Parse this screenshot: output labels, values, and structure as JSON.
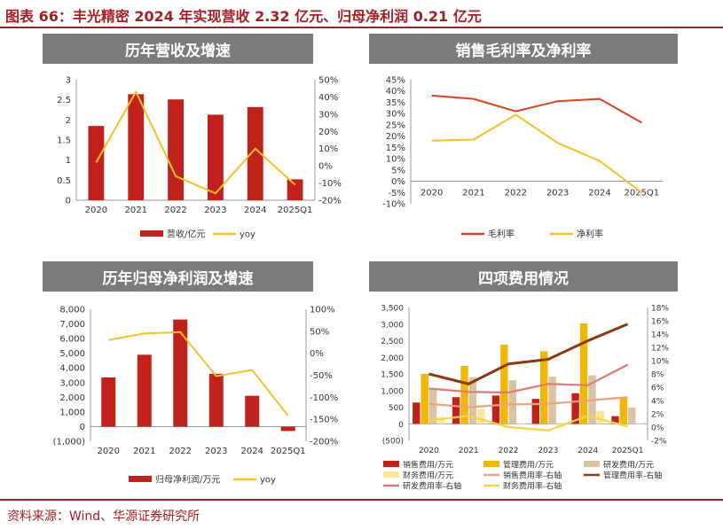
{
  "header": {
    "title": "图表 66：丰光精密 2024 年实现营收 2.32 亿元、归母净利润 0.21 亿元"
  },
  "footer": {
    "source": "资料来源：Wind、华源证券研究所"
  },
  "colors": {
    "accent": "#a31f24",
    "red_bar": "#c0211a",
    "yellow": "#f7c028",
    "orange_red": "#d9441c",
    "panel_head": "#7b7b7b"
  },
  "chart_data": [
    {
      "id": "revenue",
      "type": "bar",
      "title": "历年营收及增速",
      "categories": [
        "2020",
        "2021",
        "2022",
        "2023",
        "2024",
        "2025Q1"
      ],
      "series": [
        {
          "name": "营收/亿元",
          "type": "bar",
          "axis": "left",
          "color": "#c0211a",
          "values": [
            1.85,
            2.64,
            2.51,
            2.13,
            2.32,
            0.52
          ]
        },
        {
          "name": "yoy",
          "type": "line",
          "axis": "right",
          "color": "#f7c028",
          "values": [
            2,
            43,
            -6,
            -16,
            10,
            -11
          ]
        }
      ],
      "left_axis": {
        "ticks": [
          "0",
          "0.5",
          "1",
          "1.5",
          "2",
          "2.5",
          "3"
        ],
        "ylim": [
          0,
          3
        ]
      },
      "right_axis": {
        "ticks": [
          "-20%",
          "-10%",
          "0%",
          "10%",
          "20%",
          "30%",
          "40%",
          "50%"
        ],
        "ylim": [
          -20,
          50
        ]
      },
      "legend": "bottom"
    },
    {
      "id": "margin",
      "type": "line",
      "title": "销售毛利率及净利率",
      "categories": [
        "2020",
        "2021",
        "2022",
        "2023",
        "2024",
        "2025Q1"
      ],
      "series": [
        {
          "name": "毛利率",
          "type": "line",
          "axis": "left",
          "color": "#d9441c",
          "values": [
            38,
            36.5,
            31,
            35.5,
            36.5,
            26
          ]
        },
        {
          "name": "净利率",
          "type": "line",
          "axis": "left",
          "color": "#f7c028",
          "values": [
            18,
            18.5,
            29.5,
            17,
            9,
            -5
          ]
        }
      ],
      "left_axis": {
        "ticks": [
          "-10%",
          "-5%",
          "0%",
          "5%",
          "10%",
          "15%",
          "20%",
          "25%",
          "30%",
          "35%",
          "40%",
          "45%"
        ],
        "ylim": [
          -10,
          45
        ]
      },
      "legend": "bottom"
    },
    {
      "id": "netprofit",
      "type": "bar",
      "title": "历年归母净利润及增速",
      "categories": [
        "2020",
        "2021",
        "2022",
        "2023",
        "2024",
        "2025Q1"
      ],
      "series": [
        {
          "name": "归母净利润/万元",
          "type": "bar",
          "axis": "left",
          "color": "#c0211a",
          "values": [
            3350,
            4900,
            7300,
            3600,
            2100,
            -300
          ]
        },
        {
          "name": "yoy",
          "type": "line",
          "axis": "right",
          "color": "#f7c028",
          "values": [
            30,
            45,
            48,
            -52,
            -38,
            -142
          ]
        }
      ],
      "left_axis": {
        "ticks": [
          "(1,000)",
          "0",
          "1,000",
          "2,000",
          "3,000",
          "4,000",
          "5,000",
          "6,000",
          "7,000",
          "8,000"
        ],
        "ylim": [
          -1000,
          8000
        ]
      },
      "right_axis": {
        "ticks": [
          "-200%",
          "-150%",
          "-100%",
          "-50%",
          "0%",
          "50%",
          "100%"
        ],
        "ylim": [
          -200,
          100
        ]
      },
      "legend": "bottom"
    },
    {
      "id": "expenses",
      "type": "bar",
      "title": "四项费用情况",
      "categories": [
        "2020",
        "2021",
        "2022",
        "2023",
        "2024",
        "2025Q1"
      ],
      "series": [
        {
          "name": "销售费用/万元",
          "type": "bar",
          "axis": "left",
          "color": "#c0211a",
          "values": [
            640,
            800,
            850,
            750,
            920,
            230
          ]
        },
        {
          "name": "管理费用/万元",
          "type": "bar",
          "axis": "left",
          "color": "#f2b705",
          "values": [
            1500,
            1740,
            2380,
            2180,
            3020,
            790
          ]
        },
        {
          "name": "研发费用/万元",
          "type": "bar",
          "axis": "left",
          "color": "#d9c3a5",
          "values": [
            1060,
            1400,
            1310,
            1420,
            1460,
            490
          ]
        },
        {
          "name": "财务费用/万元",
          "type": "bar",
          "axis": "left",
          "color": "#f6e79a",
          "values": [
            200,
            450,
            10,
            -100,
            390,
            10
          ]
        },
        {
          "name": "销售费用率-右轴",
          "type": "line",
          "axis": "right",
          "color": "#f0a07a",
          "values": [
            3.5,
            3.0,
            3.4,
            3.5,
            4.0,
            4.5
          ]
        },
        {
          "name": "管理费用率-右轴",
          "type": "line",
          "axis": "right",
          "color": "#8b3a10",
          "values": [
            8.0,
            6.5,
            9.5,
            10.2,
            13.0,
            15.5
          ]
        },
        {
          "name": "研发费用率-右轴",
          "type": "line",
          "axis": "right",
          "color": "#e07a7a",
          "values": [
            5.8,
            5.3,
            5.2,
            6.5,
            6.3,
            9.4
          ]
        },
        {
          "name": "财务费用率-右轴",
          "type": "line",
          "axis": "right",
          "color": "#f8d34a",
          "values": [
            1.0,
            1.7,
            0,
            -0.5,
            1.7,
            0.1
          ]
        }
      ],
      "left_axis": {
        "ticks": [
          "(500)",
          "0",
          "500",
          "1,000",
          "1,500",
          "2,000",
          "2,500",
          "3,000",
          "3,500"
        ],
        "ylim": [
          -500,
          3500
        ]
      },
      "right_axis": {
        "ticks": [
          "-2%",
          "0%",
          "2%",
          "4%",
          "6%",
          "8%",
          "10%",
          "12%",
          "14%",
          "16%",
          "18%"
        ],
        "ylim": [
          -2,
          18
        ]
      },
      "legend": "bottom"
    }
  ]
}
